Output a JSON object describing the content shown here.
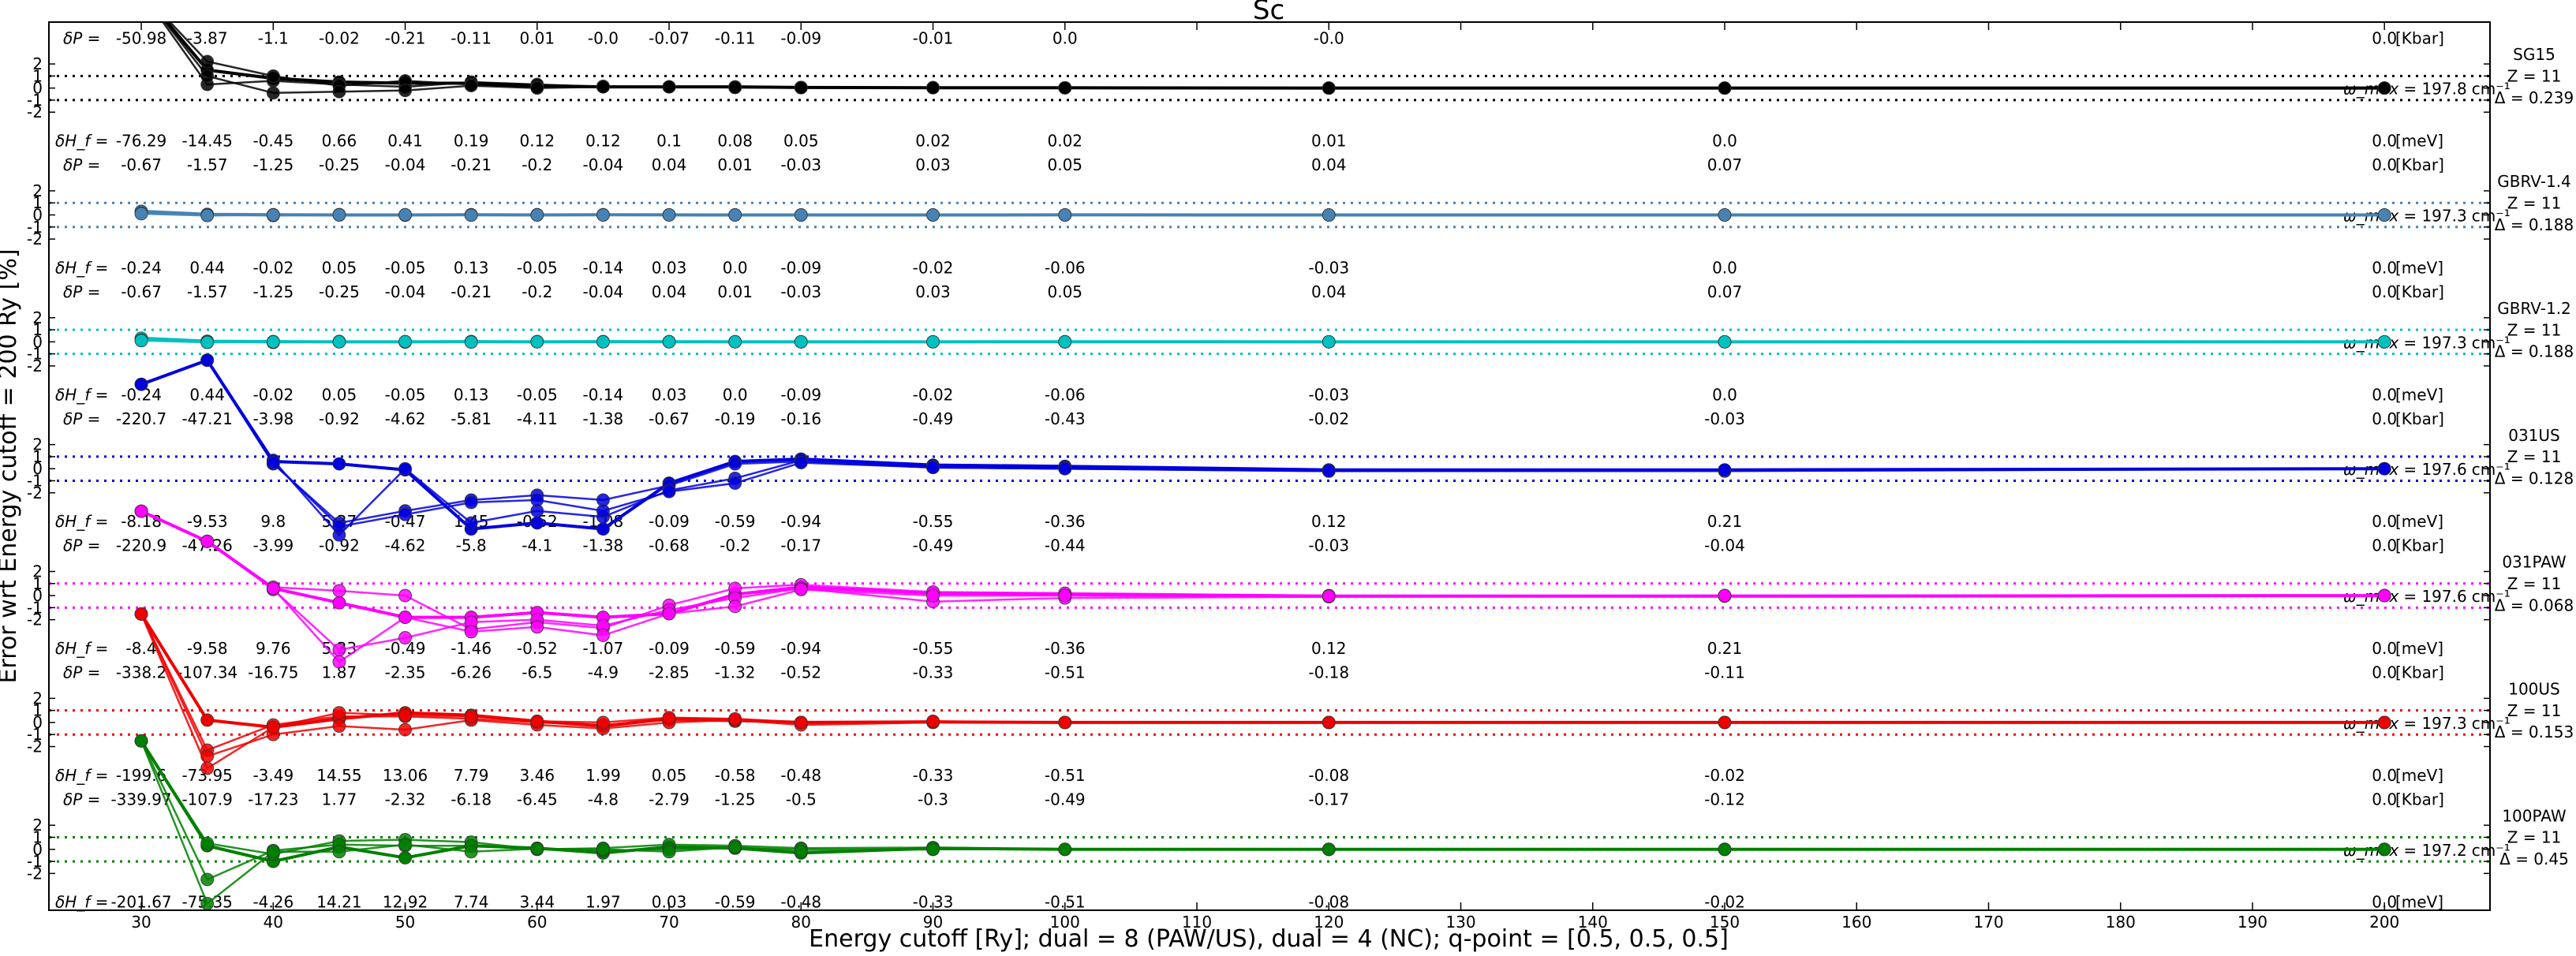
{
  "chart_data": {
    "type": "line",
    "title": "Sc",
    "xlabel": "Energy cutoff [Ry]; dual = 8 (PAW/US), dual = 4 (NC); q-point = [0.5, 0.5, 0.5]",
    "ylabel": "Error wrt Energy cutoff = 200 Ry [%]",
    "xlim": [
      23,
      208
    ],
    "x_ticks": [
      30,
      40,
      50,
      60,
      70,
      80,
      90,
      100,
      110,
      120,
      130,
      140,
      150,
      160,
      170,
      180,
      190,
      200
    ],
    "y_ticks": [
      "2",
      "1",
      "0",
      "-1",
      "-2"
    ],
    "band_ylim": [
      -2.5,
      2.5
    ],
    "x": [
      30,
      35,
      40,
      45,
      50,
      55,
      60,
      65,
      70,
      75,
      80,
      90,
      100,
      120,
      150,
      200
    ],
    "row_labels": {
      "dP": "δP =",
      "dH": "δH_f =",
      "dP_unit": "[Kbar]",
      "dH_unit": "[meV]"
    },
    "omega_prefix": "ω_max",
    "omega_unit": "cm⁻¹",
    "grid": false,
    "pseudopotentials": [
      {
        "name": "SG15",
        "Z": "Z = 11",
        "Delta": "Δ = 0.239",
        "omega": "= 197.8",
        "color": "#000000",
        "dP": [
          "-50.98",
          "-3.87",
          "-1.1",
          "-0.02",
          "-0.21",
          "-0.11",
          "0.01",
          "-0.0",
          "-0.07",
          "-0.11",
          "-0.09",
          "-0.01",
          "0.0",
          "-0.0",
          "",
          "0.0"
        ],
        "dH": [
          "-76.29",
          "-14.45",
          "-0.45",
          "0.66",
          "0.41",
          "0.19",
          "0.12",
          "0.12",
          "0.1",
          "0.08",
          "0.05",
          "0.02",
          "0.02",
          "0.01",
          "0.0",
          "0.0"
        ],
        "lines": [
          [
            8,
            1.5,
            0.8,
            0.5,
            0.4,
            0.4,
            0.2,
            0.1,
            0.1,
            0.1,
            0.05,
            0.03,
            0.02,
            0.0,
            0.0,
            0.0
          ],
          [
            8,
            0.3,
            0.6,
            0.3,
            0.1,
            0.5,
            0.3,
            0.1,
            0.1,
            0.1,
            0.05,
            0.03,
            0.02,
            0.0,
            0.0,
            0.0
          ],
          [
            8,
            2.2,
            1.0,
            0.2,
            0.6,
            0.3,
            0.1,
            0.15,
            0.1,
            0.05,
            0.05,
            0.03,
            0.02,
            0.0,
            0.0,
            0.0
          ],
          [
            8,
            1.0,
            -0.4,
            -0.3,
            -0.2,
            0.2,
            0.0,
            0.1,
            0.1,
            0.05,
            0.03,
            0.03,
            0.02,
            0.0,
            0.0,
            0.0
          ]
        ]
      },
      {
        "name": "GBRV-1.4",
        "Z": "Z = 11",
        "Delta": "Δ = 0.188",
        "omega": "= 197.3",
        "color": "#4682b4",
        "dP": [
          "-0.67",
          "-1.57",
          "-1.25",
          "-0.25",
          "-0.04",
          "-0.21",
          "-0.2",
          "-0.04",
          "0.04",
          "0.01",
          "-0.03",
          "0.03",
          "0.05",
          "0.04",
          "0.07",
          "0.0"
        ],
        "dH": [
          "-0.24",
          "0.44",
          "-0.02",
          "0.05",
          "-0.05",
          "0.13",
          "-0.05",
          "-0.14",
          "0.03",
          "0.0",
          "-0.09",
          "-0.02",
          "-0.06",
          "-0.03",
          "0.0",
          "0.0"
        ],
        "lines": [
          [
            0.3,
            0.05,
            0.02,
            0.0,
            0.0,
            0.02,
            0.0,
            0.02,
            0.01,
            0.0,
            0.0,
            0.0,
            0.01,
            0.0,
            0.0,
            0.0
          ],
          [
            0.15,
            0.0,
            -0.05,
            0.03,
            -0.02,
            0.0,
            0.02,
            0.0,
            0.0,
            0.01,
            0.0,
            0.0,
            -0.01,
            0.0,
            0.0,
            0.0
          ],
          [
            0.1,
            -0.05,
            0.0,
            0.0,
            0.02,
            -0.02,
            0.0,
            0.0,
            0.01,
            0.0,
            0.0,
            0.0,
            0.0,
            0.0,
            0.0,
            0.0
          ]
        ]
      },
      {
        "name": "GBRV-1.2",
        "Z": "Z = 11",
        "Delta": "Δ = 0.188",
        "omega": "= 197.3",
        "color": "#00bfbf",
        "dP": [
          "-0.67",
          "-1.57",
          "-1.25",
          "-0.25",
          "-0.04",
          "-0.21",
          "-0.2",
          "-0.04",
          "0.04",
          "0.01",
          "-0.03",
          "0.03",
          "0.05",
          "0.04",
          "0.07",
          "0.0"
        ],
        "dH": [
          "-0.24",
          "0.44",
          "-0.02",
          "0.05",
          "-0.05",
          "0.13",
          "-0.05",
          "-0.14",
          "0.03",
          "0.0",
          "-0.09",
          "-0.02",
          "-0.06",
          "-0.03",
          "0.0",
          "0.0"
        ],
        "lines": [
          [
            0.3,
            0.05,
            0.02,
            0.0,
            0.0,
            0.02,
            0.0,
            0.02,
            0.01,
            0.0,
            0.0,
            0.0,
            0.01,
            0.0,
            0.0,
            0.0
          ],
          [
            0.15,
            0.0,
            -0.05,
            0.03,
            -0.02,
            0.0,
            0.02,
            0.0,
            0.0,
            0.01,
            0.0,
            0.0,
            -0.01,
            0.0,
            0.0,
            0.0
          ],
          [
            0.1,
            -0.05,
            0.0,
            0.0,
            0.02,
            -0.02,
            0.0,
            0.0,
            0.01,
            0.0,
            0.0,
            0.0,
            0.0,
            0.0,
            0.0,
            0.0
          ]
        ]
      },
      {
        "name": "031US",
        "Z": "Z = 11",
        "Delta": "Δ = 0.128",
        "omega": "= 197.6",
        "color": "#0000dd",
        "dP": [
          "-220.7",
          "-47.21",
          "-3.98",
          "-0.92",
          "-4.62",
          "-5.81",
          "-4.11",
          "-1.38",
          "-0.67",
          "-0.19",
          "-0.16",
          "-0.49",
          "-0.43",
          "-0.02",
          "-0.03",
          "0.0"
        ],
        "dH": [
          "-8.18",
          "-9.53",
          "9.8",
          "5.37",
          "-0.47",
          "1.45",
          "-0.52",
          "-1.08",
          "-0.09",
          "-0.59",
          "-0.94",
          "-0.55",
          "-0.36",
          "0.12",
          "0.21",
          "0.0"
        ],
        "lines": [
          [
            7,
            9,
            0.6,
            0.4,
            -0.1,
            -5,
            -4.5,
            -5,
            -1.2,
            0.6,
            0.8,
            0.3,
            0.2,
            -0.1,
            -0.1,
            0.0
          ],
          [
            7,
            9,
            0.4,
            -4.5,
            -3.5,
            -2.6,
            -2.2,
            -2.6,
            -1.4,
            0.4,
            0.6,
            0.1,
            0.0,
            -0.2,
            -0.2,
            0.0
          ],
          [
            7,
            9,
            0.7,
            -5.5,
            0.0,
            -4.5,
            -3.5,
            -4,
            -1.8,
            -0.8,
            0.7,
            0.2,
            0.1,
            -0.1,
            -0.1,
            0.0
          ],
          [
            7,
            9,
            0.5,
            -4.8,
            -3.8,
            -2.8,
            -2.6,
            -3.5,
            -1.9,
            -1.2,
            0.5,
            0.1,
            0.0,
            -0.2,
            -0.1,
            0.0
          ]
        ]
      },
      {
        "name": "031PAW",
        "Z": "Z = 11",
        "Delta": "Δ = 0.068",
        "omega": "= 197.6",
        "color": "#ff00ff",
        "dP": [
          "-220.9",
          "-47.26",
          "-3.99",
          "-0.92",
          "-4.62",
          "-5.8",
          "-4.1",
          "-1.38",
          "-0.68",
          "-0.2",
          "-0.17",
          "-0.49",
          "-0.44",
          "-0.03",
          "-0.04",
          "0.0"
        ],
        "dH": [
          "-8.4",
          "-9.58",
          "9.76",
          "5.33",
          "-0.49",
          "-1.46",
          "-0.52",
          "-1.07",
          "-0.09",
          "-0.59",
          "-0.94",
          "-0.55",
          "-0.36",
          "0.12",
          "0.21",
          "0.0"
        ],
        "lines": [
          [
            7,
            4.5,
            0.6,
            -0.6,
            -1.8,
            -1.8,
            -1.4,
            -1.8,
            -1.5,
            0.1,
            0.7,
            0.2,
            0.1,
            -0.05,
            -0.05,
            0.0
          ],
          [
            7,
            4.5,
            0.7,
            0.4,
            0.0,
            -2.8,
            -2.2,
            -2.7,
            -0.8,
            0.6,
            0.9,
            0.3,
            0.2,
            0.0,
            0.0,
            0.0
          ],
          [
            7,
            4.5,
            0.5,
            -4.5,
            -3.5,
            -2.2,
            -2.0,
            -2.5,
            -1.2,
            -0.2,
            0.6,
            -0.5,
            -0.2,
            -0.1,
            0.0,
            0.0
          ],
          [
            7,
            4.5,
            0.6,
            -5.5,
            -1.8,
            -3.0,
            -2.6,
            -3.3,
            -1.5,
            -0.9,
            0.5,
            0.0,
            0.0,
            -0.05,
            0.0,
            0.0
          ]
        ]
      },
      {
        "name": "100US",
        "Z": "Z = 11",
        "Delta": "Δ = 0.153",
        "omega": "= 197.3",
        "color": "#ee0000",
        "dP": [
          "-338.2",
          "-107.34",
          "-16.75",
          "1.87",
          "-2.35",
          "-6.26",
          "-6.5",
          "-4.9",
          "-2.85",
          "-1.32",
          "-0.52",
          "-0.33",
          "-0.51",
          "-0.18",
          "-0.11",
          "0.0"
        ],
        "dH": [
          "-199.6",
          "-73.95",
          "-3.49",
          "14.55",
          "13.06",
          "7.79",
          "3.46",
          "1.99",
          "0.05",
          "-0.58",
          "-0.48",
          "-0.33",
          "-0.51",
          "-0.08",
          "-0.02",
          "0.0"
        ],
        "lines": [
          [
            9,
            0.2,
            -0.4,
            0.3,
            0.8,
            0.6,
            0.1,
            -0.3,
            0.3,
            0.2,
            0.0,
            0.05,
            0.0,
            0.0,
            0.0,
            0.0
          ],
          [
            9,
            -2.3,
            -0.2,
            0.5,
            0.5,
            0.3,
            0.0,
            -0.2,
            0.2,
            0.1,
            0.0,
            0.05,
            0.0,
            0.0,
            0.0,
            0.0
          ],
          [
            9,
            -2.8,
            -1.0,
            -0.3,
            -0.6,
            0.2,
            -0.2,
            -0.5,
            0.0,
            0.2,
            -0.2,
            0.0,
            0.0,
            0.0,
            0.0,
            0.0
          ],
          [
            9,
            -3.8,
            -0.4,
            0.8,
            0.6,
            0.5,
            0.1,
            0.0,
            0.4,
            0.3,
            0.0,
            0.1,
            0.0,
            0.0,
            0.0,
            0.0
          ]
        ]
      },
      {
        "name": "100PAW",
        "Z": "Z = 11",
        "Delta": "Δ = 0.45",
        "omega": "= 197.2",
        "color": "#008000",
        "dP": [
          "-339.97",
          "-107.9",
          "-17.23",
          "1.77",
          "-2.32",
          "-6.18",
          "-6.45",
          "-4.8",
          "-2.79",
          "-1.25",
          "-0.5",
          "-0.3",
          "-0.49",
          "-0.17",
          "-0.12",
          "0.0"
        ],
        "dH": [
          "-201.67",
          "-75.35",
          "-4.26",
          "14.21",
          "12.92",
          "7.74",
          "3.44",
          "1.97",
          "0.03",
          "-0.59",
          "-0.48",
          "-0.33",
          "-0.51",
          "-0.08",
          "-0.02",
          "0.0"
        ],
        "lines": [
          [
            9,
            0.3,
            -1.0,
            0.2,
            -0.7,
            0.3,
            0.1,
            -0.3,
            0.2,
            0.1,
            -0.3,
            0.1,
            0.0,
            0.0,
            0.0,
            0.0
          ],
          [
            9,
            0.5,
            -0.4,
            0.7,
            0.8,
            0.6,
            0.0,
            0.1,
            0.4,
            0.3,
            0.1,
            0.15,
            0.0,
            0.0,
            0.0,
            0.0
          ],
          [
            9,
            -2.5,
            -0.1,
            0.4,
            0.3,
            0.3,
            0.0,
            -0.1,
            0.0,
            0.1,
            0.0,
            0.0,
            0.0,
            0.0,
            0.0,
            0.0
          ],
          [
            9,
            -4.5,
            -0.2,
            -0.2,
            0.4,
            -0.2,
            0.05,
            0.0,
            -0.2,
            0.2,
            -0.2,
            0.0,
            0.0,
            0.0,
            0.0,
            0.0
          ]
        ]
      }
    ]
  }
}
